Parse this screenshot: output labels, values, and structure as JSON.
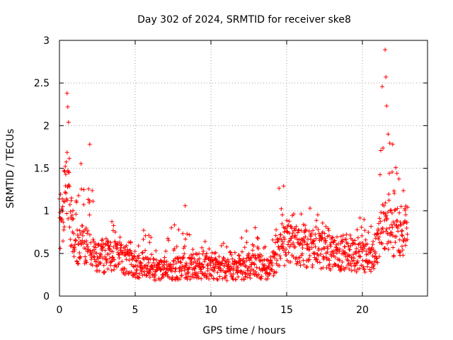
{
  "chart_data": {
    "type": "scatter",
    "title": "Day 302 of 2024, SRMTID for receiver ske8",
    "xlabel": "GPS time / hours",
    "ylabel": "SRMTID / TECUs",
    "xlim": [
      0,
      24.3
    ],
    "ylim": [
      0,
      3
    ],
    "xticks": [
      0,
      5,
      10,
      15,
      20
    ],
    "xtick_labels": [
      "0",
      "5",
      "10",
      "15",
      "20"
    ],
    "yticks": [
      0,
      0.5,
      1,
      1.5,
      2,
      2.5,
      3
    ],
    "ytick_labels": [
      "0",
      "0.5",
      "1",
      "1.5",
      "2",
      "2.5",
      "3"
    ],
    "grid": true,
    "marker": "+",
    "series": [
      {
        "name": "SRMTID",
        "color": "#ff0000",
        "envelope_hours": [
          0,
          0.25,
          0.5,
          0.75,
          1.0,
          1.5,
          2.0,
          2.5,
          3.0,
          3.5,
          4.0,
          5.0,
          6.0,
          7.0,
          8.0,
          9.0,
          10.0,
          11.0,
          12.0,
          13.0,
          14.0,
          14.5,
          15.0,
          16.0,
          17.0,
          18.0,
          19.0,
          20.0,
          20.5,
          21.0,
          21.3,
          21.7,
          22.0,
          22.5,
          23.0
        ],
        "envelope_median": [
          0.8,
          1.0,
          1.2,
          0.9,
          0.6,
          0.6,
          0.55,
          0.45,
          0.45,
          0.5,
          0.45,
          0.35,
          0.32,
          0.3,
          0.33,
          0.32,
          0.33,
          0.3,
          0.32,
          0.35,
          0.3,
          0.55,
          0.6,
          0.55,
          0.55,
          0.5,
          0.5,
          0.45,
          0.4,
          0.6,
          0.85,
          0.9,
          0.75,
          0.75,
          0.75
        ],
        "envelope_max": [
          1.3,
          1.6,
          2.4,
          1.6,
          1.4,
          1.75,
          1.78,
          0.9,
          0.75,
          1.05,
          0.95,
          0.65,
          0.95,
          0.8,
          1.06,
          0.7,
          0.65,
          0.65,
          0.7,
          0.9,
          0.55,
          1.29,
          1.2,
          1.0,
          1.15,
          0.75,
          0.85,
          1.1,
          0.75,
          1.5,
          2.89,
          1.9,
          1.8,
          1.7,
          1.1
        ],
        "peaks": [
          {
            "x": 0.5,
            "y": 2.38
          },
          {
            "x": 0.55,
            "y": 2.22
          },
          {
            "x": 0.6,
            "y": 2.04
          },
          {
            "x": 2.0,
            "y": 1.78
          },
          {
            "x": 8.3,
            "y": 1.06
          },
          {
            "x": 14.8,
            "y": 1.29
          },
          {
            "x": 21.5,
            "y": 2.89
          },
          {
            "x": 21.55,
            "y": 2.57
          },
          {
            "x": 21.6,
            "y": 2.23
          },
          {
            "x": 21.7,
            "y": 1.9
          },
          {
            "x": 22.0,
            "y": 1.78
          }
        ]
      }
    ]
  }
}
